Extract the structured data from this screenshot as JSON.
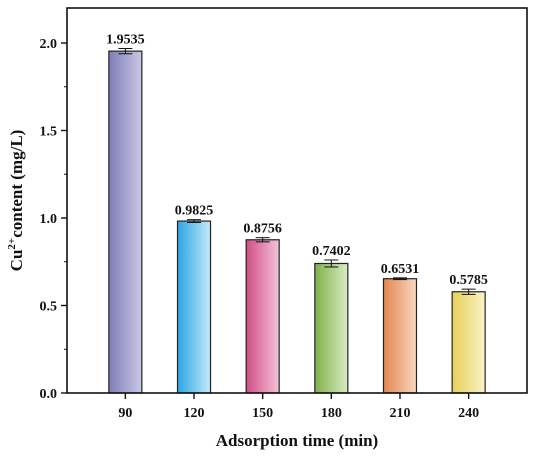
{
  "chart_data": {
    "type": "bar",
    "title": "",
    "xlabel": "Adsorption time (min)",
    "ylabel": {
      "prefix": "Cu",
      "superscript": "2+",
      "suffix": "content (mg/L)"
    },
    "categories": [
      "90",
      "120",
      "150",
      "180",
      "210",
      "240"
    ],
    "values": [
      1.9535,
      0.9825,
      0.8756,
      0.7402,
      0.6531,
      0.5785
    ],
    "value_labels": [
      "1.9535",
      "0.9825",
      "0.8756",
      "0.7402",
      "0.6531",
      "0.5785"
    ],
    "errors": [
      0.015,
      0.008,
      0.012,
      0.02,
      0.005,
      0.015
    ],
    "ylim": [
      0,
      2.2
    ],
    "yticks": [
      0.0,
      0.5,
      1.0,
      1.5,
      2.0
    ],
    "ytick_labels": [
      "0.0",
      "0.5",
      "1.0",
      "1.5",
      "2.0"
    ],
    "grid": false,
    "bar_gradients": [
      [
        "#7f7db8",
        "#c9c8e6"
      ],
      [
        "#2aa6e2",
        "#c5eaf8"
      ],
      [
        "#d14d86",
        "#f3c4d9"
      ],
      [
        "#7fb04b",
        "#d9ecc3"
      ],
      [
        "#e3874f",
        "#f8d7c0"
      ],
      [
        "#e6d05a",
        "#faf3c6"
      ]
    ]
  }
}
